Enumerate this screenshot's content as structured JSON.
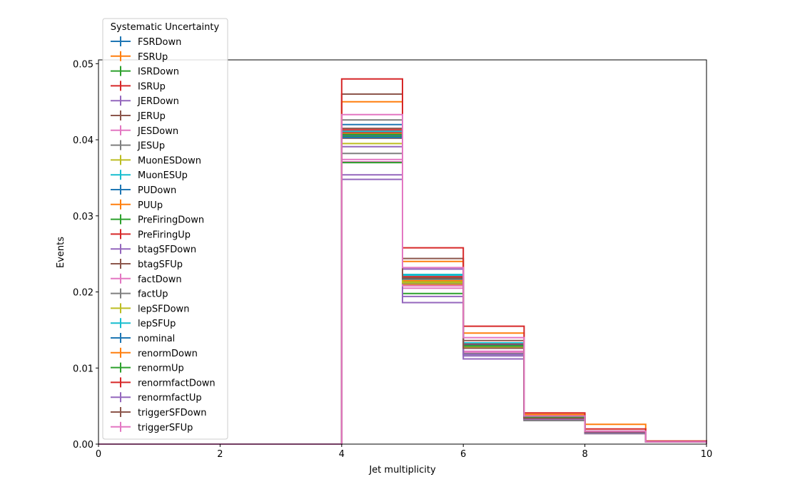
{
  "chart_data": {
    "type": "step-histogram",
    "xlabel": "Jet multiplicity",
    "ylabel": "Events",
    "xlim": [
      0,
      10
    ],
    "ylim": [
      0,
      0.0505
    ],
    "x_ticks": [
      0,
      2,
      4,
      6,
      8,
      10
    ],
    "x_tick_labels": [
      "0",
      "2",
      "4",
      "6",
      "8",
      "10"
    ],
    "y_ticks": [
      0,
      0.01,
      0.02,
      0.03,
      0.04,
      0.05
    ],
    "y_tick_labels": [
      "0.00",
      "0.01",
      "0.02",
      "0.03",
      "0.04",
      "0.05"
    ],
    "grid": false,
    "legend": {
      "title": "Systematic Uncertainty",
      "placement": "upper-left-above-axes"
    },
    "bin_edges": [
      0,
      1,
      2,
      3,
      4,
      5,
      6,
      7,
      8,
      9,
      10
    ],
    "series": [
      {
        "name": "FSRDown",
        "color": "#1f77b4",
        "values": [
          0,
          0,
          0,
          0,
          0.042,
          0.0218,
          0.013,
          0.0036,
          0.0016,
          0.0003
        ]
      },
      {
        "name": "FSRUp",
        "color": "#ff7f0e",
        "values": [
          0,
          0,
          0,
          0,
          0.0405,
          0.021,
          0.0127,
          0.0035,
          0.0016,
          0.0003
        ]
      },
      {
        "name": "ISRDown",
        "color": "#2ca02c",
        "values": [
          0,
          0,
          0,
          0,
          0.0404,
          0.0213,
          0.0129,
          0.0035,
          0.0016,
          0.0003
        ]
      },
      {
        "name": "ISRUp",
        "color": "#d62728",
        "values": [
          0,
          0,
          0,
          0,
          0.0413,
          0.0218,
          0.0131,
          0.0036,
          0.0017,
          0.0003
        ]
      },
      {
        "name": "JERDown",
        "color": "#9467bd",
        "values": [
          0,
          0,
          0,
          0,
          0.0391,
          0.0194,
          0.0116,
          0.0032,
          0.0014,
          0.0003
        ]
      },
      {
        "name": "JERUp",
        "color": "#8c564b",
        "values": [
          0,
          0,
          0,
          0,
          0.0402,
          0.0222,
          0.0126,
          0.0033,
          0.0015,
          0.0003
        ]
      },
      {
        "name": "JESDown",
        "color": "#e377c2",
        "values": [
          0,
          0,
          0,
          0,
          0.0371,
          0.0205,
          0.0122,
          0.0031,
          0.0014,
          0.0003
        ]
      },
      {
        "name": "JESUp",
        "color": "#7f7f7f",
        "values": [
          0,
          0,
          0,
          0,
          0.0426,
          0.022,
          0.0133,
          0.0035,
          0.0016,
          0.0003
        ]
      },
      {
        "name": "MuonESDown",
        "color": "#bcbd22",
        "values": [
          0,
          0,
          0,
          0,
          0.0407,
          0.0214,
          0.0128,
          0.0035,
          0.0016,
          0.0003
        ]
      },
      {
        "name": "MuonESUp",
        "color": "#17becf",
        "values": [
          0,
          0,
          0,
          0,
          0.0409,
          0.0222,
          0.013,
          0.0036,
          0.0016,
          0.0003
        ]
      },
      {
        "name": "PUDown",
        "color": "#1f77b4",
        "values": [
          0,
          0,
          0,
          0,
          0.0406,
          0.0219,
          0.013,
          0.0035,
          0.0016,
          0.0003
        ]
      },
      {
        "name": "PUUp",
        "color": "#ff7f0e",
        "values": [
          0,
          0,
          0,
          0,
          0.0408,
          0.0215,
          0.0129,
          0.0035,
          0.0016,
          0.0003
        ]
      },
      {
        "name": "PreFiringDown",
        "color": "#2ca02c",
        "values": [
          0,
          0,
          0,
          0,
          0.037,
          0.0198,
          0.0118,
          0.0033,
          0.0015,
          0.0003
        ]
      },
      {
        "name": "PreFiringUp",
        "color": "#d62728",
        "values": [
          0,
          0,
          0,
          0,
          0.041,
          0.022,
          0.0132,
          0.0036,
          0.0016,
          0.0003
        ]
      },
      {
        "name": "btagSFDown",
        "color": "#9467bd",
        "values": [
          0,
          0,
          0,
          0,
          0.0348,
          0.0186,
          0.0112,
          0.0031,
          0.0014,
          0.0003
        ]
      },
      {
        "name": "btagSFUp",
        "color": "#8c564b",
        "values": [
          0,
          0,
          0,
          0,
          0.046,
          0.0244,
          0.0136,
          0.0038,
          0.0017,
          0.0003
        ]
      },
      {
        "name": "factDown",
        "color": "#e377c2",
        "values": [
          0,
          0,
          0,
          0,
          0.0374,
          0.0208,
          0.0121,
          0.0032,
          0.0014,
          0.0003
        ]
      },
      {
        "name": "factUp",
        "color": "#7f7f7f",
        "values": [
          0,
          0,
          0,
          0,
          0.0382,
          0.0211,
          0.0119,
          0.0031,
          0.0014,
          0.0003
        ]
      },
      {
        "name": "lepSFDown",
        "color": "#bcbd22",
        "values": [
          0,
          0,
          0,
          0,
          0.0395,
          0.0212,
          0.0127,
          0.0035,
          0.0016,
          0.0003
        ]
      },
      {
        "name": "lepSFUp",
        "color": "#17becf",
        "values": [
          0,
          0,
          0,
          0,
          0.0411,
          0.0223,
          0.0133,
          0.0036,
          0.0016,
          0.0003
        ]
      },
      {
        "name": "nominal",
        "color": "#1f77b4",
        "values": [
          0,
          0,
          0,
          0,
          0.0403,
          0.0217,
          0.0129,
          0.0035,
          0.0016,
          0.0003
        ]
      },
      {
        "name": "renormDown",
        "color": "#ff7f0e",
        "values": [
          0,
          0,
          0,
          0,
          0.045,
          0.024,
          0.0146,
          0.0039,
          0.0026,
          0.0004
        ]
      },
      {
        "name": "renormUp",
        "color": "#2ca02c",
        "values": [
          0,
          0,
          0,
          0,
          0.0407,
          0.0218,
          0.0129,
          0.0035,
          0.0016,
          0.0003
        ]
      },
      {
        "name": "renormfactDown",
        "color": "#d62728",
        "values": [
          0,
          0,
          0,
          0,
          0.048,
          0.0258,
          0.0155,
          0.0041,
          0.002,
          0.0004
        ]
      },
      {
        "name": "renormfactUp",
        "color": "#9467bd",
        "values": [
          0,
          0,
          0,
          0,
          0.0354,
          0.023,
          0.0118,
          0.0033,
          0.0015,
          0.0003
        ]
      },
      {
        "name": "triggerSFDown",
        "color": "#8c564b",
        "values": [
          0,
          0,
          0,
          0,
          0.0415,
          0.0218,
          0.0126,
          0.0034,
          0.0016,
          0.0003
        ]
      },
      {
        "name": "triggerSFUp",
        "color": "#e377c2",
        "values": [
          0,
          0,
          0,
          0,
          0.0433,
          0.0232,
          0.014,
          0.0037,
          0.0017,
          0.0003
        ]
      }
    ]
  }
}
